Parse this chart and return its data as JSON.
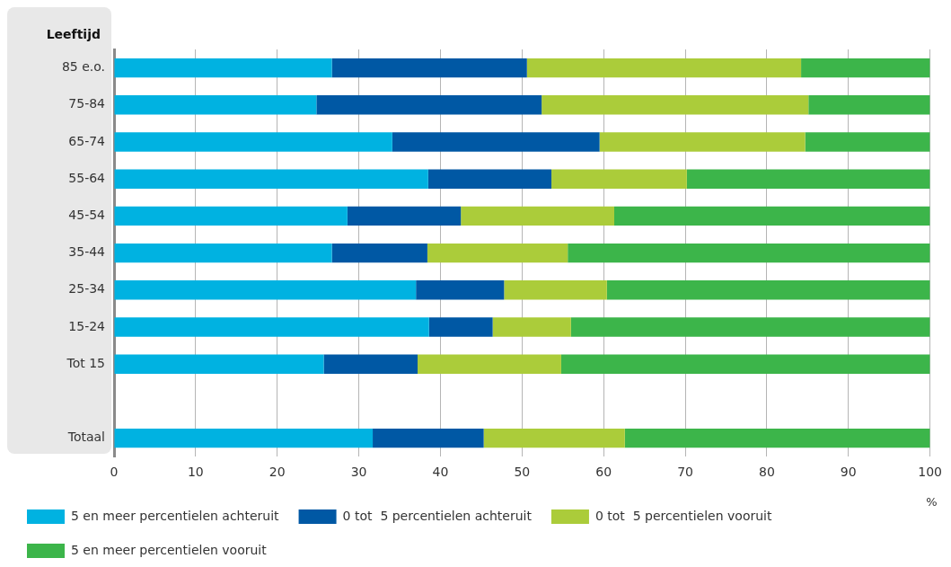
{
  "chart_data": {
    "type": "bar",
    "orientation": "horizontal",
    "stacked": true,
    "ylabel": "Leeftijd",
    "xlabel": "%",
    "categories": [
      "85 e.o.",
      "75-84",
      "65-74",
      "55-64",
      "45-54",
      "35-44",
      "25-34",
      "15-24",
      "Tot 15",
      null,
      "Totaal"
    ],
    "series": [
      {
        "name": "5 en meer percentielen achteruit",
        "color": "#00b2e1",
        "values": [
          26.7,
          24.8,
          34.1,
          38.5,
          28.6,
          26.7,
          37.0,
          38.6,
          25.7,
          null,
          31.7
        ]
      },
      {
        "name": "0 tot  5 percentielen achteruit",
        "color": "#0058a4",
        "values": [
          23.9,
          27.6,
          25.4,
          15.1,
          13.9,
          11.7,
          10.8,
          7.8,
          11.5,
          null,
          13.6
        ]
      },
      {
        "name": "0 tot  5 percentielen vooruit",
        "color": "#abcc3a",
        "values": [
          33.6,
          32.7,
          25.2,
          16.6,
          18.8,
          17.2,
          12.6,
          9.6,
          17.6,
          null,
          17.3
        ]
      },
      {
        "name": "5 en meer percentielen vooruit",
        "color": "#3cb54a",
        "values": [
          15.8,
          14.9,
          15.3,
          29.8,
          38.7,
          44.4,
          39.6,
          44.0,
          45.2,
          null,
          37.4
        ]
      }
    ],
    "xlim": [
      0,
      100
    ],
    "xticks": [
      0,
      10,
      20,
      30,
      40,
      50,
      60,
      70,
      80,
      90,
      100
    ],
    "grid": "x",
    "legend": "bottom"
  }
}
